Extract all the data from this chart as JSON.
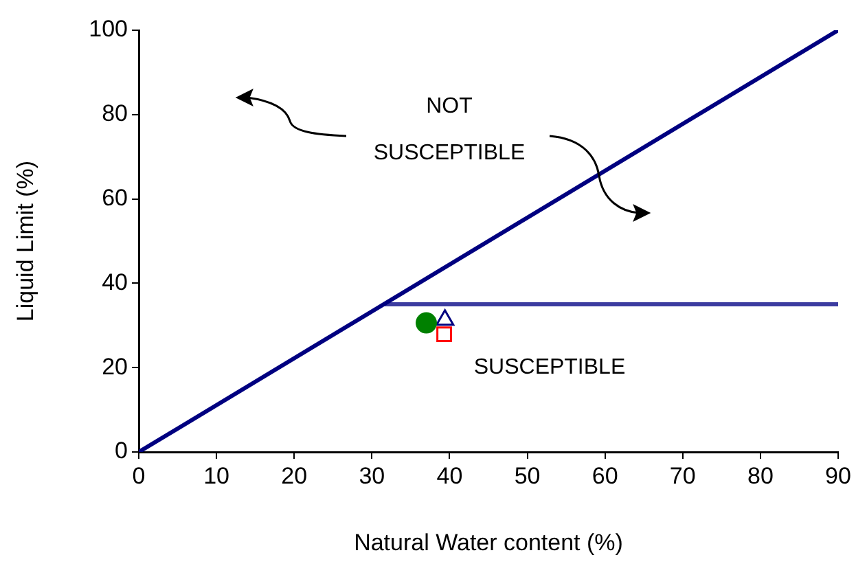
{
  "chart_data": {
    "type": "scatter",
    "xlabel": "Natural Water content (%)",
    "ylabel": "Liquid Limit (%)",
    "xlim": [
      0,
      90
    ],
    "xticks": [
      0,
      10,
      20,
      30,
      40,
      50,
      60,
      70,
      80,
      90
    ],
    "ylim": [
      0,
      100
    ],
    "yticks": [
      0,
      20,
      40,
      60,
      80,
      100
    ],
    "grid": false,
    "series": [
      {
        "type": "line",
        "color": "#000080",
        "x": [
          0,
          90
        ],
        "values": [
          0,
          100
        ],
        "marker": "none"
      },
      {
        "type": "line",
        "color": "#3c3ca0",
        "x": [
          31.5,
          90
        ],
        "values": [
          35,
          35
        ],
        "marker": "none"
      },
      {
        "type": "scatter",
        "color": "#008000",
        "x": [
          37
        ],
        "values": [
          30.6
        ],
        "marker": "circle"
      },
      {
        "type": "scatter",
        "color": "#000080",
        "x": [
          39.4
        ],
        "values": [
          31.3
        ],
        "marker": "triangle"
      },
      {
        "type": "scatter",
        "color": "#ff0000",
        "x": [
          39.3
        ],
        "values": [
          27.9
        ],
        "marker": "square"
      }
    ],
    "annotations": [
      "NOT SUSCEPTIBLE",
      "SUSCEPTIBLE"
    ]
  }
}
